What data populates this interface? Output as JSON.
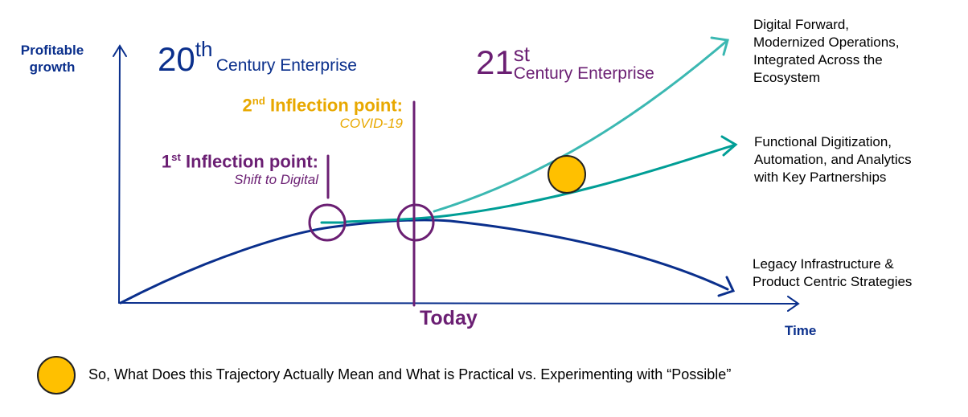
{
  "axes": {
    "y_label": "Profitable growth",
    "x_label": "Time",
    "today_label": "Today"
  },
  "eras": {
    "twentieth": {
      "number": "20",
      "suffix": "th",
      "label": "Century Enterprise"
    },
    "twentyfirst": {
      "number": "21",
      "suffix": "st",
      "label": "Century Enterprise"
    }
  },
  "inflection_1": {
    "number": "1",
    "suffix": "st",
    "title": "Inflection point:",
    "subtitle": "Shift to Digital"
  },
  "inflection_2": {
    "number": "2",
    "suffix": "nd",
    "title": "Inflection point:",
    "subtitle": "COVID-19"
  },
  "outcomes": [
    {
      "text": "Digital Forward,\nModernized Operations,\nIntegrated Across the\nEcosystem"
    },
    {
      "text": "Functional Digitization,\nAutomation, and Analytics\nwith Key Partnerships"
    },
    {
      "text": "Legacy Infrastructure &\nProduct Centric Strategies"
    }
  ],
  "footer": {
    "question": "So, What Does this Trajectory Actually Mean and What is Practical vs. Experimenting with “Possible”"
  },
  "colors": {
    "navy": "#0a2f8c",
    "purple": "#6b1f73",
    "gold": "#e8a800",
    "teal_light": "#3bb8b2",
    "teal": "#009e96",
    "marker": "#ffc000"
  }
}
